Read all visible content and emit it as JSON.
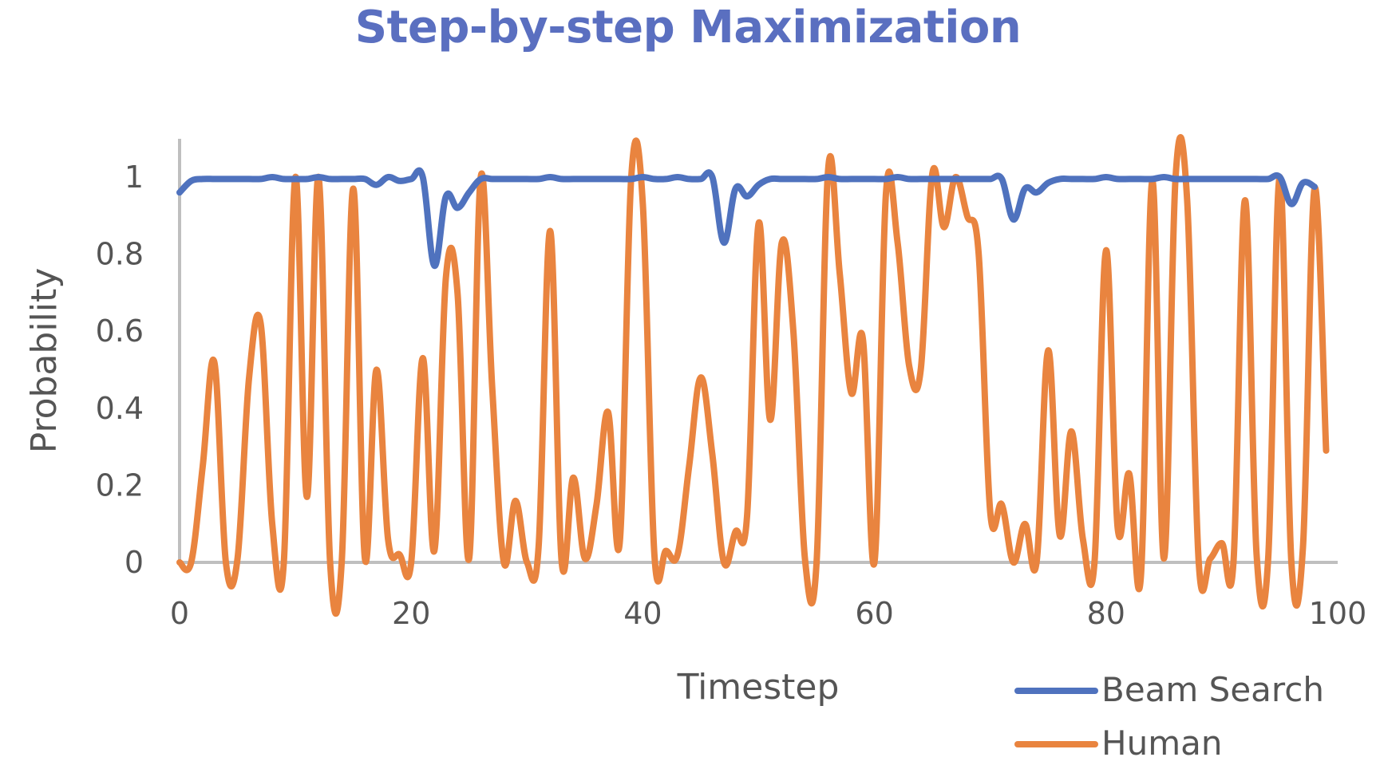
{
  "chart_data": {
    "type": "line",
    "title": "Step-by-step Maximization",
    "xlabel": "Timestep",
    "ylabel": "Probability",
    "xlim": [
      0,
      100
    ],
    "ylim": [
      0,
      1
    ],
    "x_ticks": [
      "0",
      "20",
      "40",
      "60",
      "80",
      "100"
    ],
    "y_ticks": [
      "0",
      "0.2",
      "0.4",
      "0.6",
      "0.8",
      "1"
    ],
    "grid": false,
    "legend_position": "bottom-right",
    "series": [
      {
        "name": "Beam Search",
        "color": "#4f72be",
        "values": [
          0.96,
          0.99,
          0.995,
          0.995,
          0.995,
          0.995,
          0.995,
          0.995,
          1.0,
          0.995,
          0.995,
          0.995,
          1.0,
          0.995,
          0.995,
          0.995,
          0.995,
          0.98,
          1.0,
          0.99,
          0.995,
          1.0,
          0.77,
          0.95,
          0.92,
          0.96,
          0.995,
          0.995,
          0.995,
          0.995,
          0.995,
          0.995,
          1.0,
          0.995,
          0.995,
          0.995,
          0.995,
          0.995,
          0.995,
          0.995,
          1.0,
          0.995,
          0.995,
          1.0,
          0.995,
          0.995,
          1.0,
          0.83,
          0.97,
          0.95,
          0.98,
          0.995,
          0.995,
          0.995,
          0.995,
          0.995,
          1.0,
          0.995,
          0.995,
          0.995,
          0.995,
          0.995,
          1.0,
          0.995,
          0.995,
          0.995,
          0.995,
          0.995,
          0.995,
          0.995,
          0.995,
          0.995,
          0.89,
          0.97,
          0.96,
          0.985,
          0.995,
          0.995,
          0.995,
          0.995,
          1.0,
          0.995,
          0.995,
          0.995,
          0.995,
          1.0,
          0.995,
          0.995,
          0.995,
          0.995,
          0.995,
          0.995,
          0.995,
          0.995,
          0.995,
          1.0,
          0.93,
          0.985,
          0.975
        ]
      },
      {
        "name": "Human",
        "color": "#e9843f",
        "values": [
          0.0,
          0.0,
          0.25,
          0.52,
          0.0,
          0.01,
          0.48,
          0.62,
          0.1,
          0.0,
          1.0,
          0.17,
          1.0,
          0.0,
          0.0,
          0.97,
          0.01,
          0.5,
          0.06,
          0.02,
          0.0,
          0.53,
          0.03,
          0.74,
          0.7,
          0.01,
          1.0,
          0.45,
          0.0,
          0.16,
          0.0,
          0.04,
          0.86,
          0.0,
          0.22,
          0.01,
          0.15,
          0.39,
          0.05,
          1.0,
          0.93,
          0.02,
          0.03,
          0.02,
          0.25,
          0.48,
          0.28,
          0.0,
          0.08,
          0.12,
          0.88,
          0.37,
          0.83,
          0.6,
          0.01,
          0.0,
          1.02,
          0.75,
          0.44,
          0.58,
          0.0,
          0.96,
          0.83,
          0.51,
          0.5,
          1.01,
          0.87,
          1.0,
          0.9,
          0.8,
          0.13,
          0.15,
          0.0,
          0.1,
          0.0,
          0.55,
          0.07,
          0.34,
          0.06,
          0.0,
          0.81,
          0.09,
          0.23,
          -0.04,
          0.99,
          0.01,
          1.0,
          0.94,
          0.0,
          0.01,
          0.05,
          0.0,
          0.94,
          0.02,
          0.01,
          1.0,
          0.0,
          0.04,
          0.97,
          0.29
        ]
      }
    ]
  }
}
